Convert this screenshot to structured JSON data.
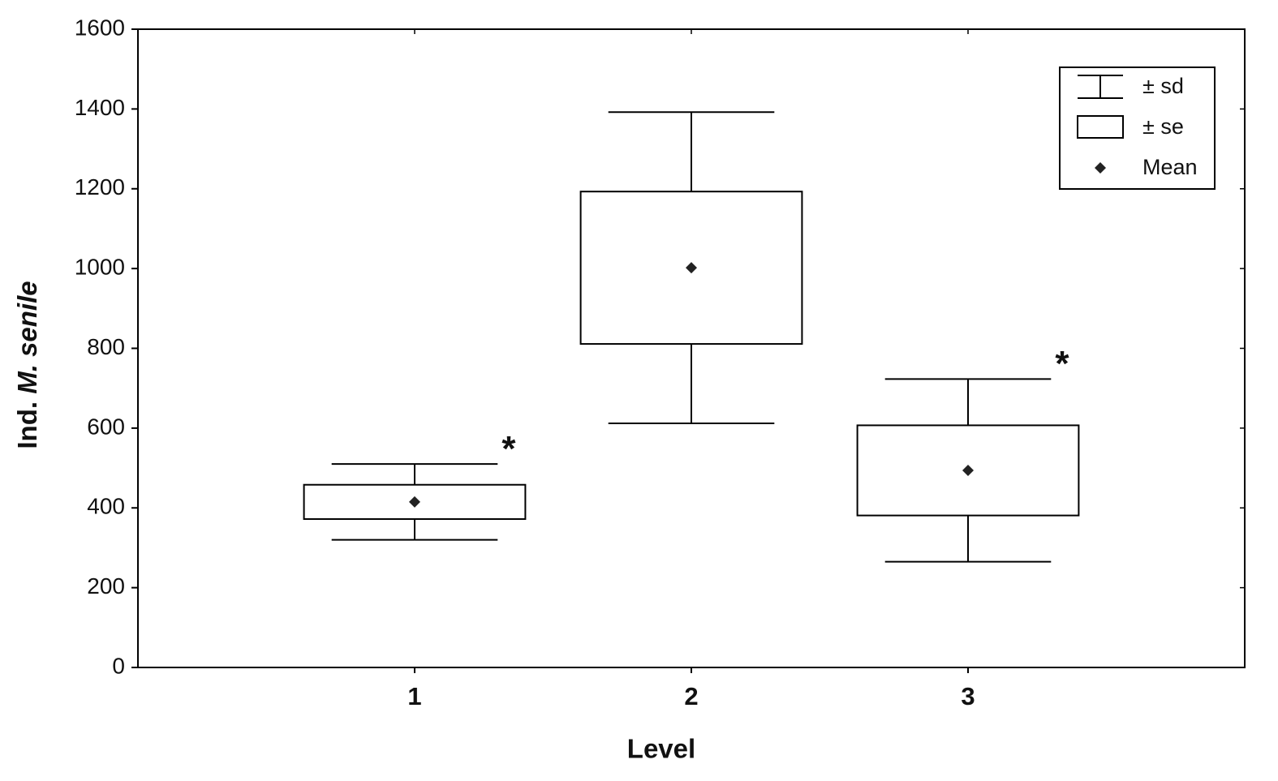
{
  "chart_data": {
    "type": "box",
    "x_label": "Level",
    "y_label": [
      "Ind.",
      "M. senile"
    ],
    "categories": [
      "1",
      "2",
      "3"
    ],
    "series": [
      {
        "name": "Ind. M. senile",
        "color": "#ffffff",
        "mean": [
          415,
          1002,
          494
        ],
        "se": [
          43,
          191,
          113
        ],
        "sd": [
          95,
          390,
          229
        ]
      }
    ],
    "legend": {
      "sd": "± sd",
      "se": "± se",
      "mean": "Mean"
    },
    "legend_position": "upper right",
    "annotations": [
      {
        "text": "*",
        "category": "1"
      },
      {
        "text": "*",
        "category": "3"
      }
    ],
    "ylim": [
      0,
      1600
    ],
    "yticks": [
      0,
      200,
      400,
      600,
      800,
      1000,
      1200,
      1400,
      1600
    ],
    "grid": false
  }
}
